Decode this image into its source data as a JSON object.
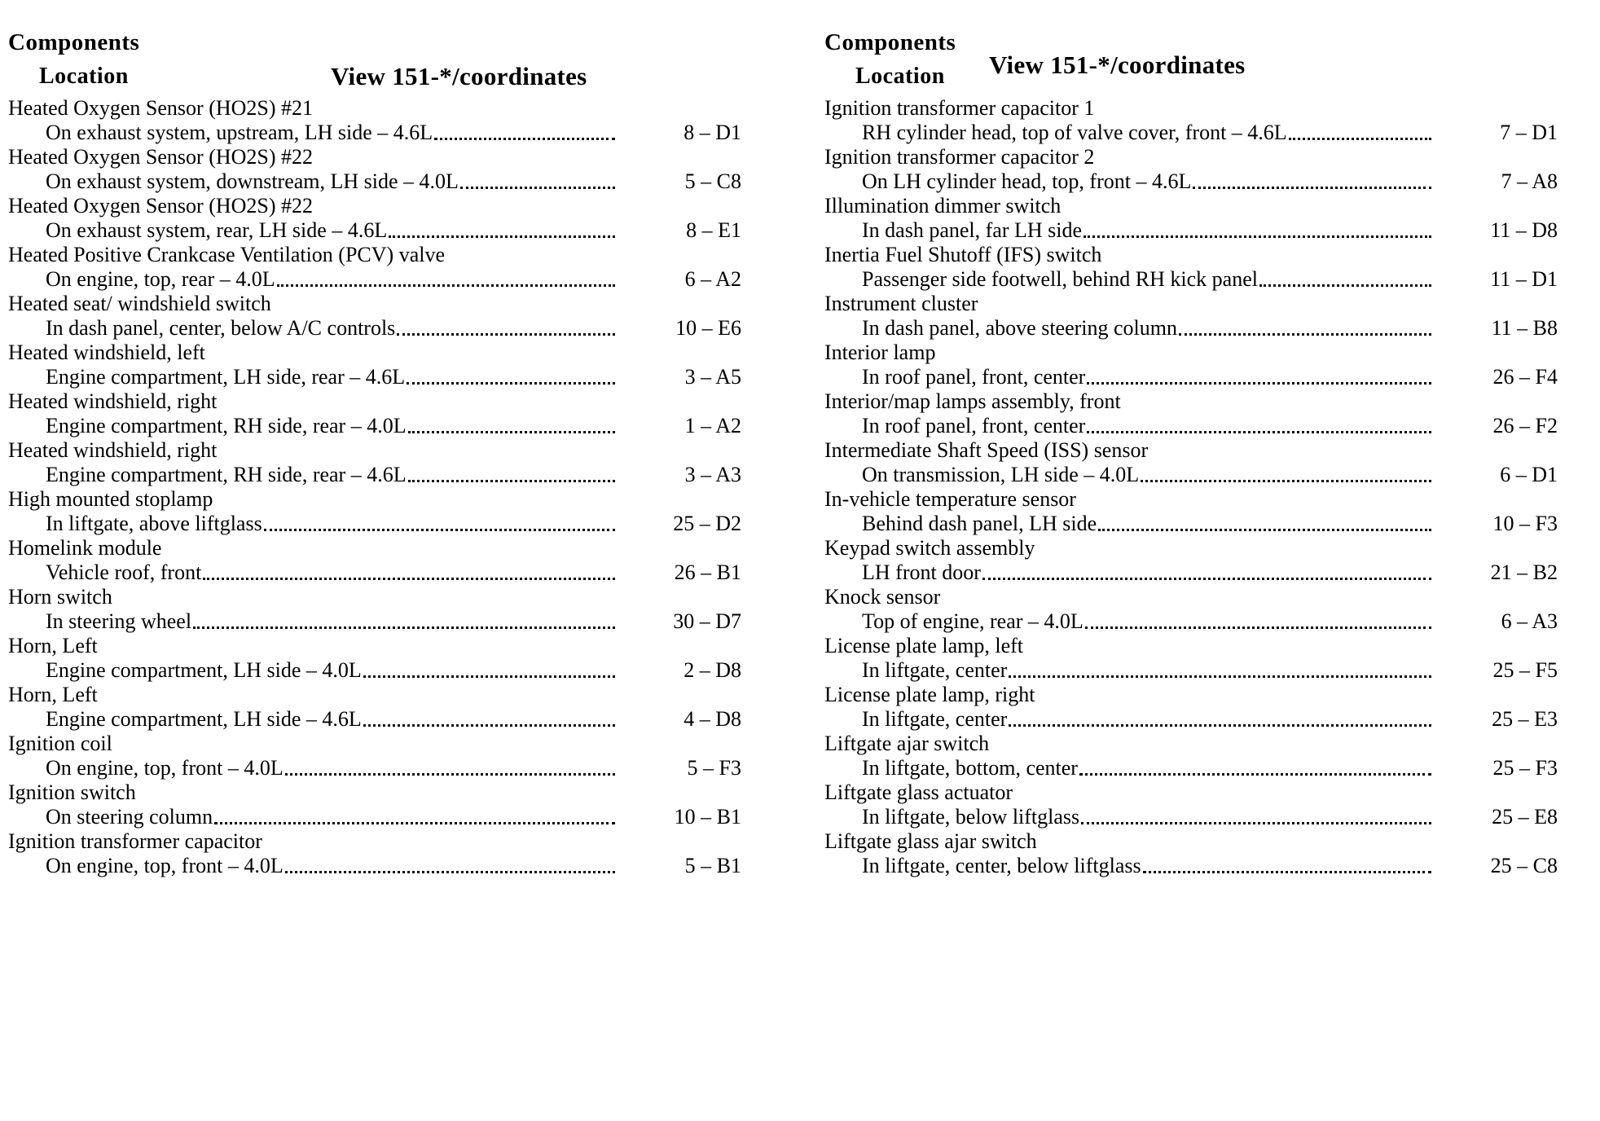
{
  "columns": [
    {
      "header": {
        "components": "Components",
        "location": "Location",
        "view": "View 151-*/coordinates"
      },
      "entries": [
        {
          "name": "Heated Oxygen Sensor (HO2S) #21",
          "location": "On exhaust system, upstream, LH side – 4.6L",
          "coord": "8 – D1"
        },
        {
          "name": "Heated Oxygen Sensor (HO2S) #22",
          "location": "On exhaust system, downstream, LH side – 4.0L",
          "coord": "5 – C8"
        },
        {
          "name": "Heated Oxygen Sensor (HO2S) #22",
          "location": "On exhaust system, rear, LH side – 4.6L",
          "coord": "8 – E1"
        },
        {
          "name": "Heated Positive Crankcase Ventilation (PCV) valve",
          "location": "On engine, top, rear – 4.0L",
          "coord": "6 – A2"
        },
        {
          "name": "Heated seat/ windshield switch",
          "location": "In dash panel, center, below A/C controls",
          "coord": "10 – E6"
        },
        {
          "name": "Heated windshield, left",
          "location": "Engine compartment, LH side, rear – 4.6L",
          "coord": "3 – A5"
        },
        {
          "name": "Heated windshield, right",
          "location": "Engine compartment, RH side, rear – 4.0L",
          "coord": "1 – A2"
        },
        {
          "name": "Heated windshield, right",
          "location": "Engine compartment, RH side, rear – 4.6L",
          "coord": "3 – A3"
        },
        {
          "name": "High mounted stoplamp",
          "location": "In liftgate, above liftglass",
          "coord": "25 – D2"
        },
        {
          "name": "Homelink module",
          "location": "Vehicle roof, front",
          "coord": "26 – B1"
        },
        {
          "name": "Horn switch",
          "location": "In steering wheel",
          "coord": "30 – D7"
        },
        {
          "name": "Horn, Left",
          "location": "Engine compartment, LH side – 4.0L",
          "coord": "2 – D8"
        },
        {
          "name": "Horn, Left",
          "location": "Engine compartment, LH side – 4.6L",
          "coord": "4 – D8"
        },
        {
          "name": "Ignition coil",
          "location": "On engine, top, front – 4.0L",
          "coord": "5 – F3"
        },
        {
          "name": "Ignition switch",
          "location": "On steering column",
          "coord": "10 – B1"
        },
        {
          "name": "Ignition transformer capacitor",
          "location": "On engine, top, front – 4.0L",
          "coord": "5 – B1"
        }
      ]
    },
    {
      "header": {
        "components": "Components",
        "location": "Location",
        "view": "View 151-*/coordinates"
      },
      "entries": [
        {
          "name": "Ignition transformer capacitor 1",
          "location": "RH cylinder head, top of valve cover, front – 4.6L",
          "coord": "7 – D1"
        },
        {
          "name": "Ignition transformer capacitor 2",
          "location": "On LH cylinder head, top, front – 4.6L",
          "coord": "7 – A8"
        },
        {
          "name": "Illumination dimmer switch",
          "location": "In dash panel, far LH side",
          "coord": "11 – D8"
        },
        {
          "name": "Inertia Fuel Shutoff (IFS) switch",
          "location": "Passenger side footwell, behind RH kick panel",
          "coord": "11 – D1"
        },
        {
          "name": "Instrument cluster",
          "location": "In dash panel, above steering column",
          "coord": "11 – B8"
        },
        {
          "name": "Interior lamp",
          "location": "In roof panel, front, center",
          "coord": "26 – F4"
        },
        {
          "name": "Interior/map lamps assembly, front",
          "location": "In roof panel, front, center",
          "coord": "26 – F2"
        },
        {
          "name": "Intermediate Shaft Speed (ISS) sensor",
          "location": "On transmission, LH side – 4.0L",
          "coord": "6 – D1"
        },
        {
          "name": "In-vehicle temperature sensor",
          "location": "Behind dash panel, LH side",
          "coord": "10 – F3"
        },
        {
          "name": "Keypad switch assembly",
          "location": "LH front door",
          "coord": "21 – B2"
        },
        {
          "name": "Knock sensor",
          "location": "Top of engine, rear – 4.0L",
          "coord": "6 – A3"
        },
        {
          "name": "License plate lamp, left",
          "location": "In liftgate, center",
          "coord": "25 – F5"
        },
        {
          "name": "License plate lamp, right",
          "location": "In liftgate, center",
          "coord": "25 – E3"
        },
        {
          "name": "Liftgate ajar switch",
          "location": "In liftgate, bottom, center",
          "coord": "25 – F3"
        },
        {
          "name": "Liftgate glass actuator",
          "location": "In liftgate, below liftglass",
          "coord": "25 – E8"
        },
        {
          "name": "Liftgate glass ajar switch",
          "location": "In liftgate, center, below liftglass",
          "coord": "25 – C8"
        }
      ]
    }
  ]
}
